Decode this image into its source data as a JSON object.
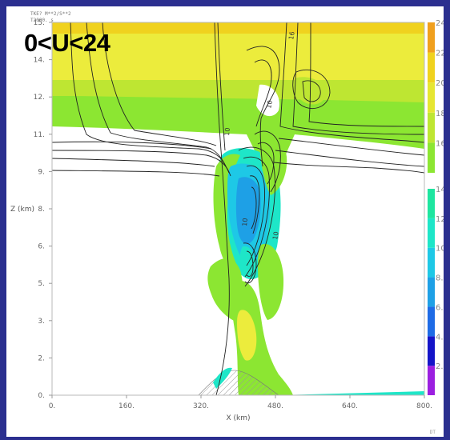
{
  "headline": "0<U<24",
  "header_meta": [
    "TKE? M**2/S**2",
    "T2000. s"
  ],
  "corner_mark": "DT",
  "chart_data": {
    "type": "heatmap",
    "xlabel": "X (km)",
    "ylabel": "Z (km)",
    "xlim": [
      0,
      800
    ],
    "ylim": [
      0,
      15
    ],
    "x_ticks": [
      0,
      160,
      320,
      480,
      640,
      800
    ],
    "x_tick_labels": [
      "0.",
      "160.",
      "320.",
      "480.",
      "640.",
      "800."
    ],
    "y_ticks": [
      0,
      1.5,
      3,
      4.5,
      6,
      7.5,
      9,
      10.5,
      12,
      13.5,
      15
    ],
    "y_tick_labels": [
      "0.",
      "2.",
      "3.",
      "5.",
      "6.",
      "8.",
      "9.",
      "11.",
      "12.",
      "14.",
      "15."
    ],
    "colorbar": {
      "levels": [
        2,
        4,
        6,
        8,
        10,
        12,
        14,
        16,
        18,
        20,
        22,
        24
      ],
      "labels": [
        "2.0",
        "4.0",
        "6.0",
        "8.0",
        "10.",
        "12.",
        "14.",
        "16.",
        "18.",
        "20.",
        "22.",
        "24."
      ],
      "colors": [
        "#9b1fe0",
        "#1414c8",
        "#1e6be6",
        "#1ea0e6",
        "#1ec8e6",
        "#1ee6c8",
        "#1ee6a0",
        "#8ce632",
        "#bee632",
        "#e6e632",
        "#f0d21e",
        "#f0a01e"
      ]
    },
    "contour_labels": [
      "16",
      "10",
      "10",
      "10",
      "10"
    ]
  },
  "colors": {
    "frame": "#2b2f8f",
    "background": "#ffffff"
  }
}
